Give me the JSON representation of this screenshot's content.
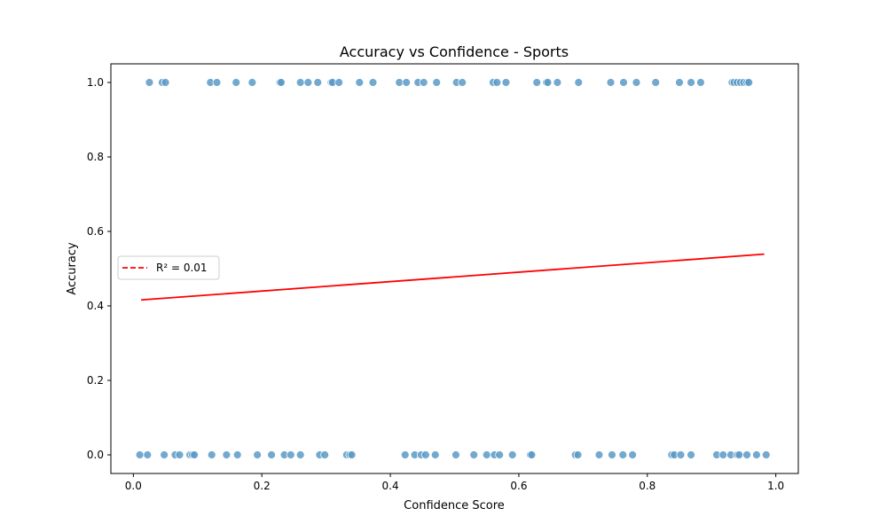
{
  "chart_data": {
    "type": "scatter",
    "title": "Accuracy vs Confidence - Sports",
    "xlabel": "Confidence Score",
    "ylabel": "Accuracy",
    "xlim": [
      -0.035,
      1.035
    ],
    "ylim": [
      -0.05,
      1.05
    ],
    "xticks": [
      0.0,
      0.2,
      0.4,
      0.6,
      0.8,
      1.0
    ],
    "xtick_labels": [
      "0.0",
      "0.2",
      "0.4",
      "0.6",
      "0.8",
      "1.0"
    ],
    "yticks": [
      0.0,
      0.2,
      0.4,
      0.6,
      0.8,
      1.0
    ],
    "ytick_labels": [
      "0.0",
      "0.2",
      "0.4",
      "0.6",
      "0.8",
      "1.0"
    ],
    "grid": false,
    "legend": {
      "placement": "center-left",
      "entries": [
        "R² = 0.01"
      ]
    },
    "colors": {
      "points": "#5a9ac6",
      "points_edge": "#ffffff",
      "fit_line": "#ff0000"
    },
    "series": [
      {
        "kind": "points",
        "x": [
          0.025,
          0.045,
          0.05,
          0.12,
          0.13,
          0.16,
          0.185,
          0.228,
          0.23,
          0.26,
          0.272,
          0.287,
          0.308,
          0.31,
          0.32,
          0.352,
          0.373,
          0.414,
          0.425,
          0.443,
          0.452,
          0.472,
          0.503,
          0.512,
          0.56,
          0.566,
          0.58,
          0.628,
          0.643,
          0.645,
          0.66,
          0.693,
          0.743,
          0.763,
          0.783,
          0.813,
          0.85,
          0.868,
          0.883,
          0.932,
          0.935,
          0.94,
          0.945,
          0.95,
          0.955,
          0.958
        ],
        "y": [
          1,
          1,
          1,
          1,
          1,
          1,
          1,
          1,
          1,
          1,
          1,
          1,
          1,
          1,
          1,
          1,
          1,
          1,
          1,
          1,
          1,
          1,
          1,
          1,
          1,
          1,
          1,
          1,
          1,
          1,
          1,
          1,
          1,
          1,
          1,
          1,
          1,
          1,
          1,
          1,
          1,
          1,
          1,
          1,
          1,
          1
        ]
      },
      {
        "kind": "points",
        "x": [
          0.01,
          0.022,
          0.048,
          0.065,
          0.072,
          0.088,
          0.092,
          0.095,
          0.122,
          0.145,
          0.162,
          0.193,
          0.215,
          0.235,
          0.245,
          0.26,
          0.29,
          0.298,
          0.332,
          0.337,
          0.34,
          0.423,
          0.438,
          0.448,
          0.455,
          0.47,
          0.502,
          0.53,
          0.55,
          0.562,
          0.57,
          0.59,
          0.618,
          0.62,
          0.688,
          0.692,
          0.725,
          0.745,
          0.762,
          0.777,
          0.838,
          0.842,
          0.852,
          0.868,
          0.908,
          0.918,
          0.93,
          0.94,
          0.943,
          0.955,
          0.97,
          0.985
        ],
        "y": [
          0,
          0,
          0,
          0,
          0,
          0,
          0,
          0,
          0,
          0,
          0,
          0,
          0,
          0,
          0,
          0,
          0,
          0,
          0,
          0,
          0,
          0,
          0,
          0,
          0,
          0,
          0,
          0,
          0,
          0,
          0,
          0,
          0,
          0,
          0,
          0,
          0,
          0,
          0,
          0,
          0,
          0,
          0,
          0,
          0,
          0,
          0,
          0,
          0,
          0,
          0,
          0
        ]
      },
      {
        "kind": "fit_line",
        "name": "R² = 0.01",
        "x": [
          0.012,
          0.982
        ],
        "y": [
          0.416,
          0.539
        ]
      }
    ]
  }
}
